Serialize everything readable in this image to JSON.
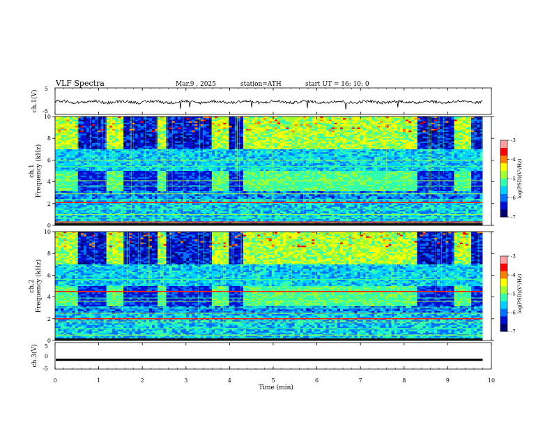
{
  "header": {
    "title": "VLF  Spectra",
    "date": "Mar.9  , 2025",
    "station": "station=ATH",
    "start": "start  UT  =   16: 10: 0"
  },
  "colors": {
    "spectrogram_scale": [
      "#000070",
      "#0010d0",
      "#0070ff",
      "#00d0ff",
      "#30ffb0",
      "#a0ff30",
      "#ffff00",
      "#ff8000",
      "#ff0000",
      "#ffa0a0",
      "#ffffff"
    ],
    "waveform": "#000000",
    "frame": "#000000"
  },
  "chart_data": [
    {
      "type": "line",
      "name": "ch1-waveform",
      "ylabel": "ch.1(V)",
      "ylim": [
        -5,
        5
      ],
      "yticks": [
        "5",
        "-5"
      ],
      "xlim": [
        0,
        10
      ],
      "mean": -0.3,
      "amplitude": 1.0,
      "note_visible": ""
    },
    {
      "type": "heatmap",
      "name": "ch1-spectrogram",
      "ylabel": "ch.1\nFrequency (kHz)",
      "ylabel_line1": "ch.1",
      "ylabel_line2": "Frequency (kHz)",
      "ylim": [
        0,
        10
      ],
      "yticks": [
        "0",
        "2",
        "4",
        "6",
        "8",
        "10"
      ],
      "xlim": [
        0,
        10
      ],
      "colorbar": {
        "label": "log(PSD)(V²/Hz)",
        "range": [
          -7,
          -3
        ],
        "ticks": [
          "-3",
          "-4",
          "-5",
          "-6",
          "-7"
        ]
      },
      "quiet_intervals_min": [
        [
          0.5,
          1.15
        ],
        [
          1.55,
          2.35
        ],
        [
          2.55,
          3.6
        ],
        [
          4.0,
          4.3
        ],
        [
          8.3,
          9.15
        ],
        [
          9.55,
          9.8
        ]
      ],
      "lines_khz": [
        0.3,
        0.7,
        1.0,
        1.5,
        2.1,
        2.35,
        2.9,
        3.6,
        4.1,
        5.4,
        6.0
      ]
    },
    {
      "type": "heatmap",
      "name": "ch2-spectrogram",
      "ylabel_line1": "ch.2",
      "ylabel_line2": "Frequency (kHz)",
      "ylim": [
        0,
        10
      ],
      "yticks": [
        "0",
        "2",
        "4",
        "6",
        "8",
        "10"
      ],
      "xlim": [
        0,
        10
      ],
      "colorbar": {
        "label": "log(PSD)(V²/Hz)",
        "range": [
          -7,
          -3
        ],
        "ticks": [
          "-3",
          "-4",
          "-5",
          "-6",
          "-7"
        ]
      },
      "quiet_intervals_min": [
        [
          0.5,
          1.15
        ],
        [
          1.55,
          2.35
        ],
        [
          2.55,
          3.6
        ],
        [
          4.0,
          4.3
        ],
        [
          8.3,
          9.15
        ],
        [
          9.55,
          9.8
        ]
      ],
      "lines_khz": [
        0.5,
        1.1,
        1.7,
        2.0,
        2.5,
        3.0,
        3.6,
        3.9,
        4.5,
        5.6
      ]
    },
    {
      "type": "line",
      "name": "ch3-waveform",
      "ylabel": "ch.3(V)",
      "ylim": [
        -5,
        5
      ],
      "yticks": [
        "5",
        "0",
        "-5"
      ],
      "xlim": [
        0,
        10
      ],
      "mean": -1.5,
      "amplitude": 0.2
    }
  ],
  "xaxis": {
    "label": "Time  (min)",
    "ticks": [
      "0",
      "1",
      "2",
      "3",
      "4",
      "5",
      "6",
      "7",
      "8",
      "9",
      "10"
    ],
    "range": [
      0,
      10
    ]
  }
}
